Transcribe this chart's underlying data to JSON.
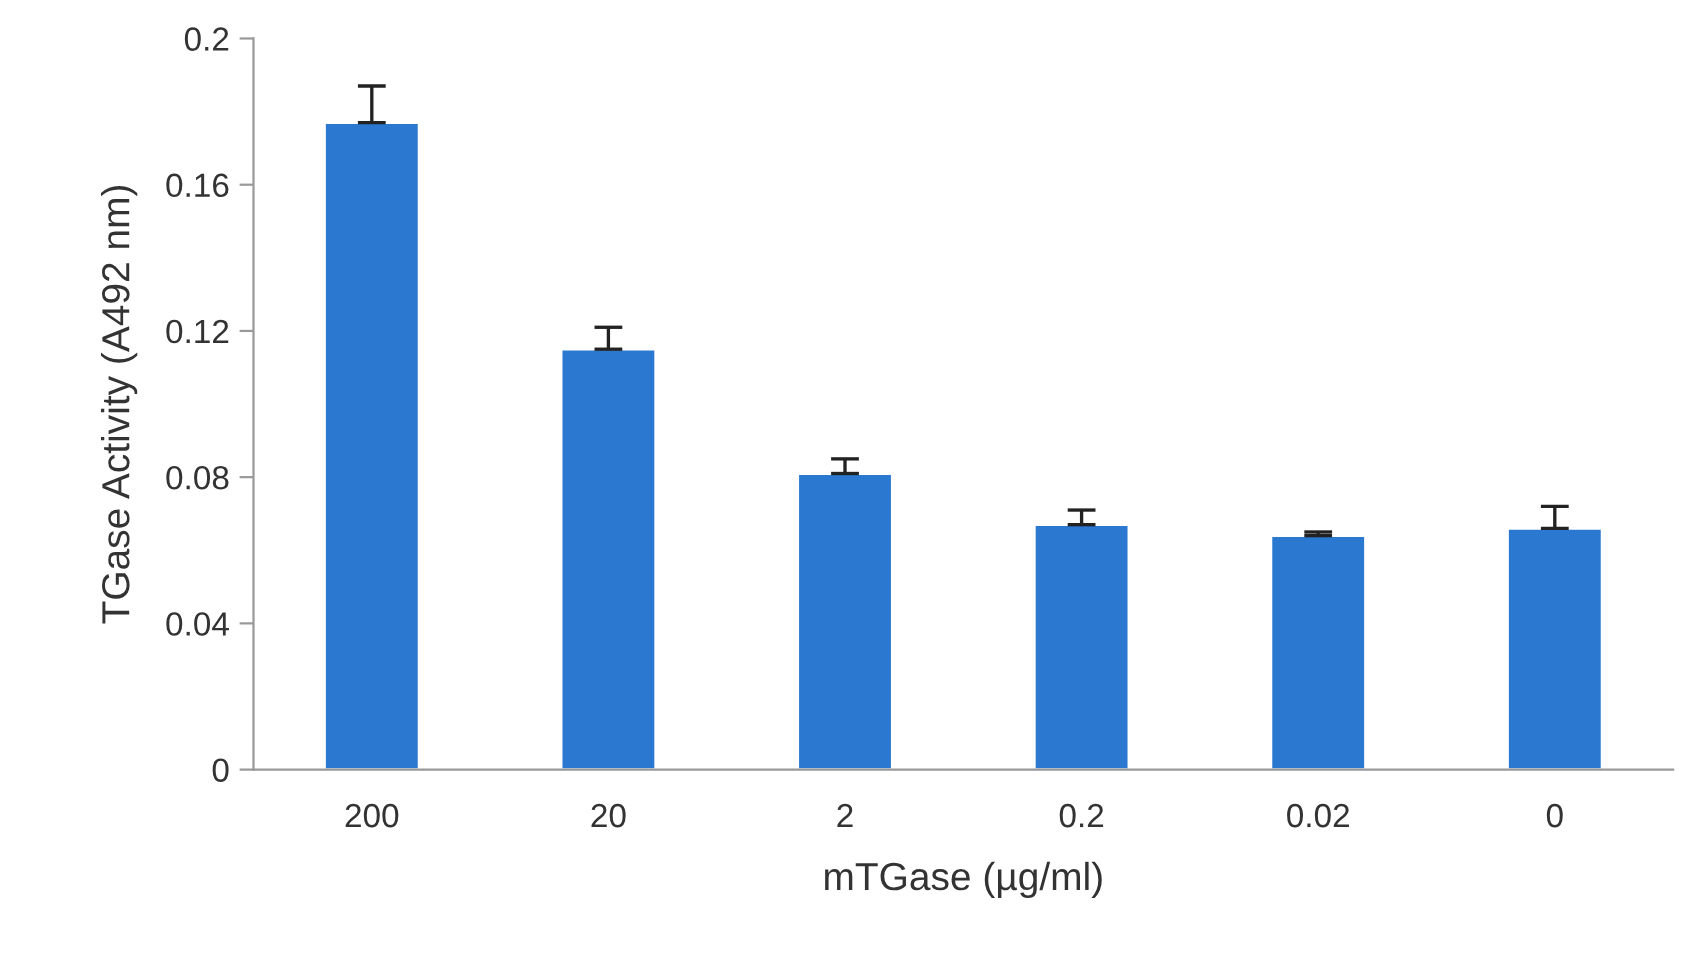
{
  "chart_data": {
    "type": "bar",
    "xlabel": "mTGase (µg/ml)",
    "ylabel": "TGase Activity (A492 nm)",
    "categories": [
      "200",
      "20",
      "2",
      "0.2",
      "0.02",
      "0"
    ],
    "values": [
      0.177,
      0.115,
      0.081,
      0.067,
      0.064,
      0.066
    ],
    "errors": [
      [
        0.177,
        0.187
      ],
      [
        0.115,
        0.121
      ],
      [
        0.081,
        0.085
      ],
      [
        0.067,
        0.071
      ],
      [
        0.064,
        0.065
      ],
      [
        0.066,
        0.072
      ]
    ],
    "color": "#2a78d0",
    "ylim": [
      0,
      0.2
    ],
    "yticks": [
      0,
      0.04,
      0.08,
      0.12,
      0.16,
      0.2
    ],
    "grid": false,
    "legend": false
  }
}
